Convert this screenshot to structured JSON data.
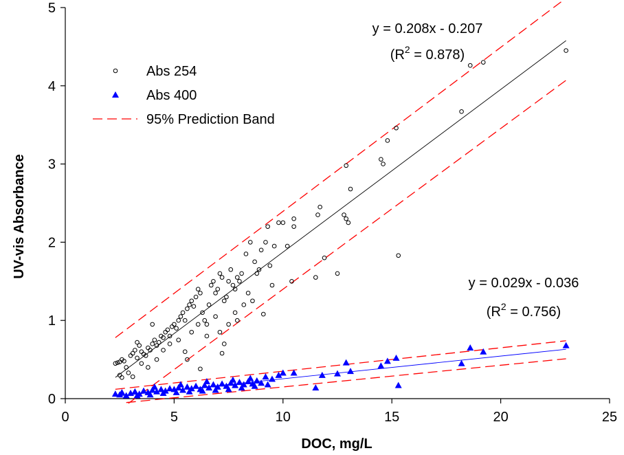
{
  "chart_data": {
    "type": "scatter",
    "xlabel": "DOC, mg/L",
    "ylabel": "UV-vis Absorbance",
    "xlim": [
      0,
      25
    ],
    "ylim": [
      0,
      5
    ],
    "xticks": [
      "0",
      "5",
      "10",
      "15",
      "20",
      "25"
    ],
    "yticks": [
      "0",
      "1",
      "2",
      "3",
      "4",
      "5"
    ],
    "legend_position": "upper-left",
    "grid": false,
    "legend": {
      "abs254_label": "Abs 254",
      "abs400_label": "Abs 400",
      "band_label": "95% Prediction Band"
    },
    "colors": {
      "abs254": "#000000",
      "abs400": "#0000ff",
      "band": "#ff0000"
    },
    "annotations": {
      "eq254_line1": "y = 0.208x - 0.207",
      "eq254_r2": "0.878",
      "eq400_line1": "y = 0.029x - 0.036",
      "eq400_r2": "0.756"
    },
    "series": [
      {
        "name": "Abs 254",
        "marker": "open-circle",
        "fit": {
          "slope": 0.208,
          "intercept": -0.207,
          "x": [
            2.3,
            23.0
          ]
        },
        "band": {
          "upper": [
            [
              2.3,
              0.78
            ],
            [
              23.0,
              5.12
            ]
          ],
          "lower": [
            [
              2.9,
              -0.06
            ],
            [
              23.0,
              4.07
            ]
          ]
        },
        "points": [
          [
            2.3,
            0.45
          ],
          [
            2.4,
            0.46
          ],
          [
            2.5,
            0.47
          ],
          [
            2.6,
            0.5
          ],
          [
            2.5,
            0.3
          ],
          [
            2.6,
            0.27
          ],
          [
            2.7,
            0.48
          ],
          [
            2.8,
            0.4
          ],
          [
            3.0,
            0.55
          ],
          [
            3.1,
            0.58
          ],
          [
            3.2,
            0.62
          ],
          [
            3.3,
            0.72
          ],
          [
            3.4,
            0.68
          ],
          [
            3.5,
            0.6
          ],
          [
            3.6,
            0.57
          ],
          [
            3.7,
            0.55
          ],
          [
            3.8,
            0.65
          ],
          [
            3.9,
            0.62
          ],
          [
            4.0,
            0.7
          ],
          [
            4.1,
            0.75
          ],
          [
            4.2,
            0.68
          ],
          [
            4.3,
            0.72
          ],
          [
            4.4,
            0.8
          ],
          [
            4.5,
            0.78
          ],
          [
            4.6,
            0.85
          ],
          [
            4.7,
            0.88
          ],
          [
            4.8,
            0.8
          ],
          [
            4.9,
            0.92
          ],
          [
            5.0,
            0.95
          ],
          [
            5.1,
            0.9
          ],
          [
            5.2,
            1.0
          ],
          [
            5.3,
            1.05
          ],
          [
            5.4,
            1.1
          ],
          [
            5.5,
            1.0
          ],
          [
            5.6,
            1.15
          ],
          [
            5.7,
            1.2
          ],
          [
            5.8,
            1.25
          ],
          [
            5.9,
            1.18
          ],
          [
            6.0,
            1.3
          ],
          [
            6.1,
            1.4
          ],
          [
            6.2,
            1.35
          ],
          [
            6.3,
            1.1
          ],
          [
            6.4,
            1.0
          ],
          [
            6.5,
            0.95
          ],
          [
            6.6,
            1.2
          ],
          [
            6.7,
            1.45
          ],
          [
            6.8,
            1.5
          ],
          [
            6.9,
            1.35
          ],
          [
            7.0,
            1.4
          ],
          [
            7.1,
            1.6
          ],
          [
            7.2,
            1.55
          ],
          [
            7.3,
            1.25
          ],
          [
            7.4,
            1.3
          ],
          [
            7.5,
            1.5
          ],
          [
            7.6,
            1.65
          ],
          [
            7.7,
            1.45
          ],
          [
            7.8,
            1.4
          ],
          [
            7.9,
            1.55
          ],
          [
            8.0,
            1.5
          ],
          [
            8.1,
            1.6
          ],
          [
            8.3,
            1.85
          ],
          [
            8.5,
            2.0
          ],
          [
            8.7,
            1.75
          ],
          [
            8.9,
            1.65
          ],
          [
            9.0,
            1.9
          ],
          [
            9.2,
            2.0
          ],
          [
            9.3,
            2.2
          ],
          [
            9.4,
            1.7
          ],
          [
            9.6,
            1.95
          ],
          [
            9.8,
            2.25
          ],
          [
            10.0,
            2.25
          ],
          [
            10.2,
            1.95
          ],
          [
            10.4,
            1.5
          ],
          [
            10.5,
            2.3
          ],
          [
            10.5,
            2.2
          ],
          [
            11.5,
            1.55
          ],
          [
            11.7,
            2.45
          ],
          [
            11.6,
            2.35
          ],
          [
            11.9,
            1.8
          ],
          [
            12.5,
            1.6
          ],
          [
            12.8,
            2.35
          ],
          [
            12.9,
            2.3
          ],
          [
            13.0,
            2.25
          ],
          [
            12.9,
            2.98
          ],
          [
            13.1,
            2.68
          ],
          [
            14.5,
            3.06
          ],
          [
            14.6,
            3.0
          ],
          [
            14.8,
            3.3
          ],
          [
            15.2,
            3.46
          ],
          [
            15.3,
            1.83
          ],
          [
            18.2,
            3.67
          ],
          [
            18.6,
            4.26
          ],
          [
            19.2,
            4.3
          ],
          [
            23.0,
            4.45
          ],
          [
            3.5,
            0.45
          ],
          [
            3.8,
            0.4
          ],
          [
            4.2,
            0.5
          ],
          [
            4.5,
            0.62
          ],
          [
            4.8,
            0.7
          ],
          [
            5.2,
            0.75
          ],
          [
            5.5,
            0.6
          ],
          [
            5.8,
            0.85
          ],
          [
            6.1,
            0.95
          ],
          [
            6.5,
            0.8
          ],
          [
            6.9,
            1.05
          ],
          [
            7.1,
            0.85
          ],
          [
            7.3,
            0.7
          ],
          [
            7.5,
            0.95
          ],
          [
            7.8,
            1.1
          ],
          [
            8.2,
            1.2
          ],
          [
            8.6,
            1.25
          ],
          [
            9.1,
            1.08
          ],
          [
            4.0,
            0.95
          ],
          [
            3.3,
            0.52
          ],
          [
            2.9,
            0.33
          ],
          [
            3.1,
            0.28
          ],
          [
            5.6,
            0.5
          ],
          [
            6.2,
            0.38
          ],
          [
            7.2,
            0.58
          ],
          [
            7.9,
            1.0
          ],
          [
            8.4,
            1.35
          ],
          [
            8.8,
            1.6
          ],
          [
            9.5,
            1.45
          ]
        ]
      },
      {
        "name": "Abs 400",
        "marker": "filled-triangle",
        "fit": {
          "slope": 0.029,
          "intercept": -0.036,
          "x": [
            2.3,
            23.0
          ]
        },
        "band": {
          "upper": [
            [
              2.3,
              0.12
            ],
            [
              23.0,
              0.74
            ]
          ],
          "lower": [
            [
              2.8,
              -0.05
            ],
            [
              23.0,
              0.51
            ]
          ]
        },
        "points": [
          [
            2.3,
            0.06
          ],
          [
            2.5,
            0.05
          ],
          [
            2.6,
            0.08
          ],
          [
            2.8,
            0.04
          ],
          [
            3.0,
            0.07
          ],
          [
            3.2,
            0.09
          ],
          [
            3.4,
            0.06
          ],
          [
            3.6,
            0.1
          ],
          [
            3.8,
            0.08
          ],
          [
            4.0,
            0.11
          ],
          [
            4.2,
            0.09
          ],
          [
            4.4,
            0.12
          ],
          [
            4.6,
            0.1
          ],
          [
            4.8,
            0.13
          ],
          [
            5.0,
            0.12
          ],
          [
            5.2,
            0.14
          ],
          [
            5.4,
            0.11
          ],
          [
            5.6,
            0.15
          ],
          [
            5.8,
            0.13
          ],
          [
            6.0,
            0.16
          ],
          [
            6.2,
            0.12
          ],
          [
            6.4,
            0.17
          ],
          [
            6.6,
            0.14
          ],
          [
            6.8,
            0.18
          ],
          [
            7.0,
            0.15
          ],
          [
            7.2,
            0.19
          ],
          [
            7.4,
            0.16
          ],
          [
            7.6,
            0.2
          ],
          [
            7.8,
            0.17
          ],
          [
            8.0,
            0.21
          ],
          [
            8.2,
            0.18
          ],
          [
            8.4,
            0.22
          ],
          [
            8.6,
            0.19
          ],
          [
            8.8,
            0.23
          ],
          [
            9.0,
            0.2
          ],
          [
            9.2,
            0.28
          ],
          [
            9.5,
            0.25
          ],
          [
            9.8,
            0.3
          ],
          [
            10.0,
            0.33
          ],
          [
            10.5,
            0.33
          ],
          [
            11.5,
            0.14
          ],
          [
            11.8,
            0.3
          ],
          [
            12.5,
            0.32
          ],
          [
            12.9,
            0.46
          ],
          [
            13.1,
            0.35
          ],
          [
            14.5,
            0.42
          ],
          [
            14.8,
            0.48
          ],
          [
            15.2,
            0.52
          ],
          [
            15.3,
            0.17
          ],
          [
            18.2,
            0.45
          ],
          [
            18.6,
            0.65
          ],
          [
            19.2,
            0.6
          ],
          [
            23.0,
            0.68
          ],
          [
            3.3,
            0.04
          ],
          [
            3.9,
            0.05
          ],
          [
            4.5,
            0.07
          ],
          [
            5.1,
            0.08
          ],
          [
            5.7,
            0.09
          ],
          [
            6.3,
            0.1
          ],
          [
            6.9,
            0.11
          ],
          [
            7.5,
            0.12
          ],
          [
            8.1,
            0.14
          ],
          [
            8.7,
            0.16
          ],
          [
            9.3,
            0.18
          ],
          [
            4.1,
            0.15
          ],
          [
            5.3,
            0.18
          ],
          [
            6.5,
            0.22
          ],
          [
            7.7,
            0.24
          ],
          [
            8.5,
            0.26
          ]
        ]
      }
    ]
  }
}
